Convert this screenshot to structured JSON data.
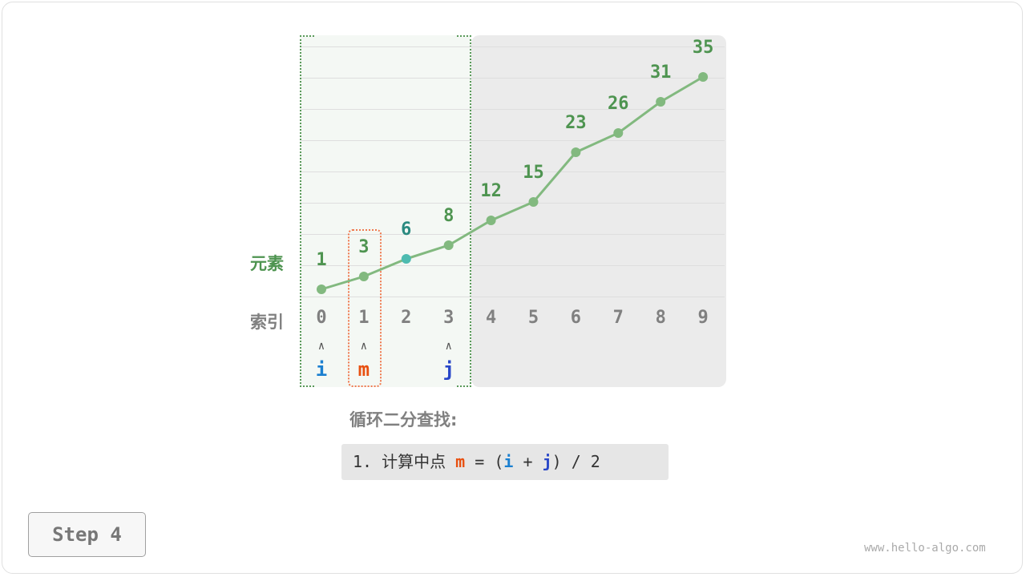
{
  "row_labels": {
    "elements": "元素",
    "indices": "索引"
  },
  "values": [
    1,
    3,
    6,
    8,
    12,
    15,
    23,
    26,
    31,
    35
  ],
  "indices": [
    "0",
    "1",
    "2",
    "3",
    "4",
    "5",
    "6",
    "7",
    "8",
    "9"
  ],
  "pointers": {
    "i": {
      "label": "i",
      "index": 0,
      "color": "#1a7fd0"
    },
    "m": {
      "label": "m",
      "index": 1,
      "color": "#e85010"
    },
    "j": {
      "label": "j",
      "index": 3,
      "color": "#2846c8"
    }
  },
  "arrow_glyph": "∧",
  "active_range": [
    0,
    3
  ],
  "highlight_index": 2,
  "colors": {
    "value_text": "#4e9450",
    "highlight_text": "#2a8a80",
    "point": "#82b97f",
    "highlight_point": "#4dbbb0",
    "active_bg": "#f4f8f4",
    "excluded_bg": "#ebebeb"
  },
  "title": "循环二分查找:",
  "formula": {
    "prefix": "1. 计算中点 ",
    "m": "m",
    "eq": " = (",
    "i": "i",
    "plus": " + ",
    "j": "j",
    "suffix": ") / 2"
  },
  "step_button": "Step 4",
  "watermark": "www.hello-algo.com"
}
